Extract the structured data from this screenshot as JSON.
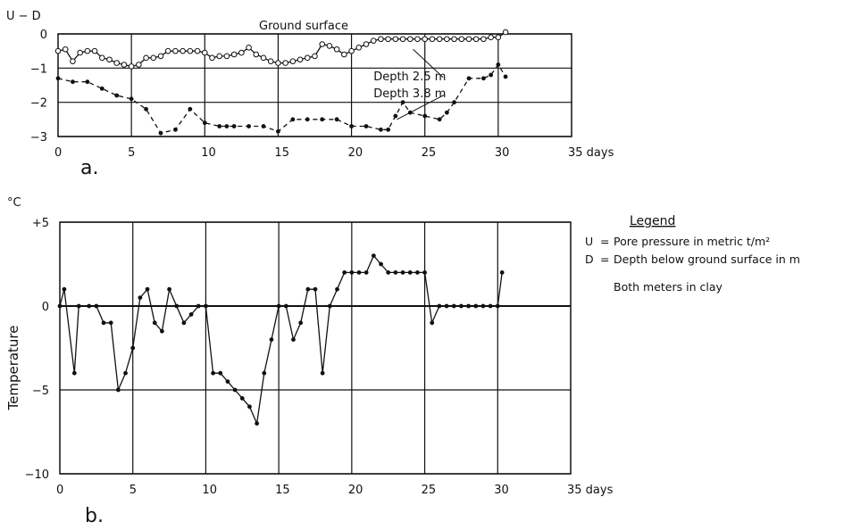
{
  "chart_data": [
    {
      "panel": "a.",
      "type": "line",
      "ylabel": "U − D",
      "xlabel": "days",
      "annotation": "Ground surface",
      "xlim": [
        0,
        35
      ],
      "ylim": [
        -3,
        0
      ],
      "xticks": [
        0,
        5,
        10,
        15,
        20,
        25,
        30,
        35
      ],
      "yticks": [
        0,
        -1,
        -2,
        -3
      ],
      "xtick_labels": [
        "0",
        "5",
        "10",
        "15",
        "20",
        "25",
        "30",
        "35 days"
      ],
      "ytick_labels": [
        "0",
        "−1",
        "−2",
        "−3"
      ],
      "grid": true,
      "series": [
        {
          "name": "Depth 2.5 m",
          "style": "solid-open-circles",
          "x": [
            0,
            0.5,
            1,
            1.5,
            2,
            2.5,
            3,
            3.5,
            4,
            4.5,
            5,
            5.5,
            6,
            6.5,
            7,
            7.5,
            8,
            8.5,
            9,
            9.5,
            10,
            10.5,
            11,
            11.5,
            12,
            12.5,
            13,
            13.5,
            14,
            14.5,
            15,
            15.5,
            16,
            16.5,
            17,
            17.5,
            18,
            18.5,
            19,
            19.5,
            20,
            20.5,
            21,
            21.5,
            22,
            22.5,
            23,
            23.5,
            24,
            24.5,
            25,
            25.5,
            26,
            26.5,
            27,
            27.5,
            28,
            28.5,
            29,
            29.5,
            30,
            30.5
          ],
          "y": [
            -0.5,
            -0.45,
            -0.8,
            -0.55,
            -0.5,
            -0.5,
            -0.7,
            -0.75,
            -0.85,
            -0.9,
            -0.95,
            -0.9,
            -0.7,
            -0.7,
            -0.65,
            -0.5,
            -0.5,
            -0.5,
            -0.5,
            -0.5,
            -0.55,
            -0.7,
            -0.65,
            -0.65,
            -0.6,
            -0.55,
            -0.4,
            -0.6,
            -0.7,
            -0.8,
            -0.85,
            -0.85,
            -0.8,
            -0.75,
            -0.7,
            -0.65,
            -0.3,
            -0.35,
            -0.45,
            -0.6,
            -0.5,
            -0.4,
            -0.3,
            -0.2,
            -0.15,
            -0.15,
            -0.15,
            -0.15,
            -0.15,
            -0.15,
            -0.15,
            -0.15,
            -0.15,
            -0.15,
            -0.15,
            -0.15,
            -0.15,
            -0.15,
            -0.15,
            -0.1,
            -0.1,
            0.05
          ]
        },
        {
          "name": "Depth 3.8 m",
          "style": "dashed-dots",
          "x": [
            0,
            1,
            2,
            3,
            4,
            5,
            6,
            7,
            8,
            9,
            10,
            11,
            11.5,
            12,
            13,
            14,
            15,
            16,
            17,
            18,
            19,
            20,
            21,
            22,
            22.5,
            23,
            23.5,
            24,
            25,
            26,
            26.5,
            27,
            28,
            29,
            29.5,
            30,
            30.5
          ],
          "y": [
            -1.3,
            -1.4,
            -1.4,
            -1.6,
            -1.8,
            -1.9,
            -2.2,
            -2.9,
            -2.8,
            -2.2,
            -2.6,
            -2.7,
            -2.7,
            -2.7,
            -2.7,
            -2.7,
            -2.85,
            -2.5,
            -2.5,
            -2.5,
            -2.5,
            -2.7,
            -2.7,
            -2.8,
            -2.8,
            -2.4,
            -2.0,
            -2.3,
            -2.4,
            -2.5,
            -2.3,
            -2.0,
            -1.3,
            -1.3,
            -1.2,
            -0.9,
            -1.25
          ]
        }
      ],
      "labels": [
        {
          "text": "Depth 2.5 m",
          "x": 21.5,
          "y": -1.35
        },
        {
          "text": "Depth 3.8 m",
          "x": 21.5,
          "y": -1.85
        }
      ]
    },
    {
      "panel": "b.",
      "type": "line",
      "ylabel": "Temperature",
      "yunit": "°C",
      "xlabel": "days",
      "xlim": [
        0,
        35
      ],
      "ylim": [
        -10,
        5
      ],
      "xticks": [
        0,
        5,
        10,
        15,
        20,
        25,
        30,
        35
      ],
      "yticks": [
        5,
        0,
        -5,
        -10
      ],
      "xtick_labels": [
        "0",
        "5",
        "10",
        "15",
        "20",
        "25",
        "30",
        "35 days"
      ],
      "ytick_labels": [
        "+5",
        "0",
        "−5",
        "−10"
      ],
      "grid": true,
      "series": [
        {
          "name": "",
          "style": "solid-dots",
          "x": [
            0,
            0.3,
            1,
            1.3,
            2,
            2.5,
            3,
            3.5,
            4,
            4.5,
            5,
            5.5,
            6,
            6.5,
            7,
            7.5,
            8,
            8.5,
            9,
            9.5,
            10,
            10.5,
            11,
            11.5,
            12,
            12.5,
            13,
            13.5,
            14,
            14.5,
            15,
            15.5,
            16,
            16.5,
            17,
            17.5,
            18,
            18.5,
            19,
            19.5,
            20,
            20.5,
            21,
            21.5,
            22,
            22.5,
            23,
            23.5,
            24,
            24.5,
            25,
            25.5,
            26,
            26.5,
            27,
            27.5,
            28,
            28.5,
            29,
            29.5,
            30,
            30.3
          ],
          "y": [
            0,
            1,
            -4,
            0,
            0,
            0,
            -1,
            -1,
            -5,
            -4,
            -2.5,
            0.5,
            1,
            -1,
            -1.5,
            1,
            0,
            -1,
            -0.5,
            0,
            0,
            -4,
            -4,
            -4.5,
            -5,
            -5.5,
            -6,
            -7,
            -4,
            -2,
            0,
            0,
            -2,
            -1,
            1,
            1,
            -4,
            0,
            1,
            2,
            2,
            2,
            2,
            3,
            2.5,
            2,
            2,
            2,
            2,
            2,
            2,
            -1,
            0,
            0,
            0,
            0,
            0,
            0,
            0,
            0,
            0,
            2
          ]
        }
      ]
    }
  ],
  "legend": {
    "title": "Legend",
    "items": [
      {
        "symbol": "U",
        "sep": "=",
        "text": "Pore pressure in metric t/m²"
      },
      {
        "symbol": "D",
        "sep": "=",
        "text": "Depth below ground surface in m"
      }
    ],
    "note": "Both meters in clay"
  }
}
